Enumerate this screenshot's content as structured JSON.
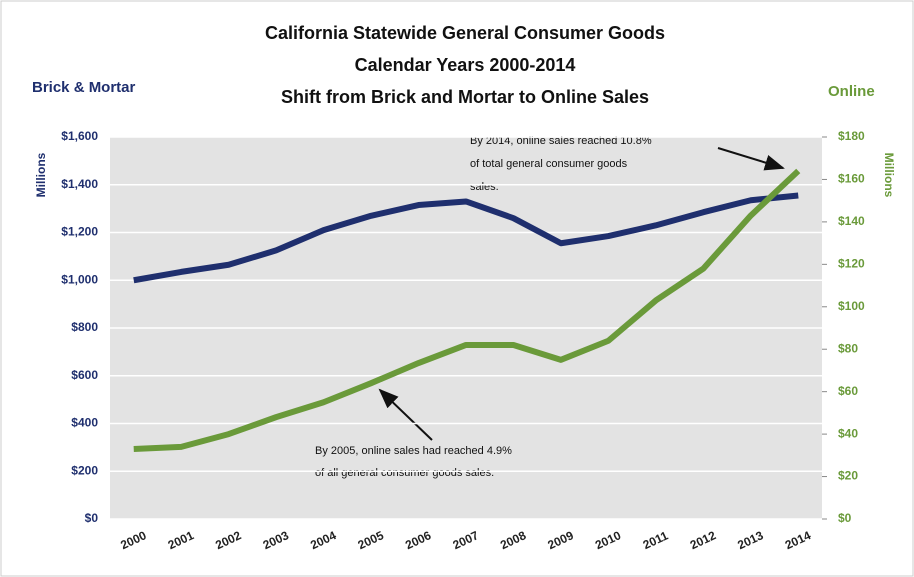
{
  "chart_data": {
    "type": "line",
    "title": [
      "California Statewide General Consumer Goods",
      "Calendar Years 2000-2014",
      "Shift from Brick and Mortar to Online Sales"
    ],
    "ylabel": "Millions",
    "y2label": "Millions",
    "categories": [
      "2000",
      "2001",
      "2002",
      "2003",
      "2004",
      "2005",
      "2006",
      "2007",
      "2008",
      "2009",
      "2010",
      "2011",
      "2012",
      "2013",
      "2014"
    ],
    "series": [
      {
        "name": "Brick & Mortar",
        "color": "#1f2f6e",
        "axis": "y",
        "values": [
          1000,
          1035,
          1065,
          1125,
          1210,
          1270,
          1315,
          1330,
          1260,
          1155,
          1185,
          1230,
          1285,
          1335,
          1355
        ]
      },
      {
        "name": "Online",
        "color": "#6a9a3a",
        "axis": "y2",
        "values": [
          33,
          34,
          40,
          48,
          55,
          64,
          73.5,
          82,
          82,
          75,
          84,
          103,
          118,
          143,
          164
        ]
      }
    ],
    "ylim": [
      0,
      1600
    ],
    "yticks": [
      {
        "value": 0,
        "label": "$0"
      },
      {
        "value": 200,
        "label": "$200"
      },
      {
        "value": 400,
        "label": "$400"
      },
      {
        "value": 600,
        "label": "$600"
      },
      {
        "value": 800,
        "label": "$800"
      },
      {
        "value": 1000,
        "label": "$1,000"
      },
      {
        "value": 1200,
        "label": "$1,200"
      },
      {
        "value": 1400,
        "label": "$1,400"
      },
      {
        "value": 1600,
        "label": "$1,600"
      }
    ],
    "y2lim": [
      0,
      180
    ],
    "y2ticks": [
      {
        "value": 0,
        "label": "$0"
      },
      {
        "value": 20,
        "label": "$20"
      },
      {
        "value": 40,
        "label": "$40"
      },
      {
        "value": 60,
        "label": "$60"
      },
      {
        "value": 80,
        "label": "$80"
      },
      {
        "value": 100,
        "label": "$100"
      },
      {
        "value": 120,
        "label": "$120"
      },
      {
        "value": 140,
        "label": "$140"
      },
      {
        "value": 160,
        "label": "$160"
      },
      {
        "value": 180,
        "label": "$180"
      }
    ],
    "grid": true,
    "annotations": [
      {
        "lines": [
          "By 2014, online sales reached 10.8%",
          "of total general consumer goods",
          "sales."
        ]
      },
      {
        "lines": [
          "By 2005, online sales had reached 4.9%",
          "of all general consumer goods sales."
        ]
      }
    ]
  }
}
